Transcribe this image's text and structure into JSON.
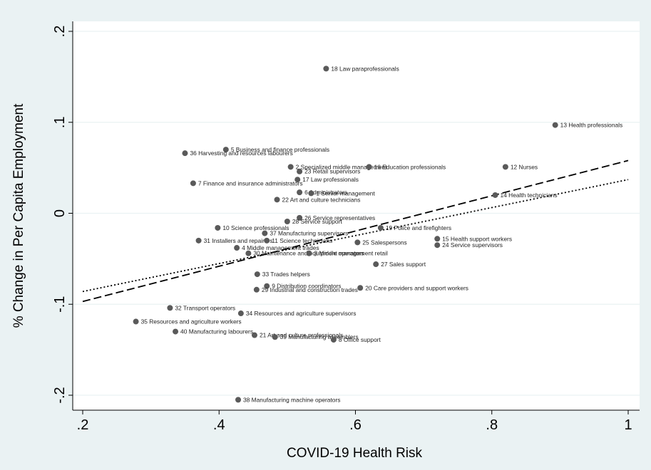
{
  "chart_data": {
    "type": "scatter",
    "title": "",
    "xlabel": "COVID-19 Health Risk",
    "ylabel": "% Change in Per Capita Employment",
    "xlim": [
      0.2,
      1.0
    ],
    "ylim": [
      -0.2,
      0.2
    ],
    "xticks": [
      ".2",
      ".4",
      ".6",
      ".8",
      "1"
    ],
    "yticks": [
      "-.2",
      "-.1",
      "0",
      ".1",
      ".2"
    ],
    "grid": true,
    "legend": "none",
    "colors": {
      "background": "#eaf2f3",
      "plot_area": "#ffffff",
      "marker": "#5a5a5a",
      "grid": "#eaf2f3"
    },
    "points": [
      {
        "label": "18 Law paraprofessionals",
        "x": 0.557,
        "y": 0.159
      },
      {
        "label": "13 Health professionals",
        "x": 0.893,
        "y": 0.097
      },
      {
        "label": "5 Business and finance professionals",
        "x": 0.41,
        "y": 0.07
      },
      {
        "label": "36 Harvesting and resources labourers",
        "x": 0.35,
        "y": 0.066
      },
      {
        "label": "2 Specialized middle management",
        "x": 0.505,
        "y": 0.051
      },
      {
        "label": "16 Education professionals",
        "x": 0.62,
        "y": 0.051
      },
      {
        "label": "12 Nurses",
        "x": 0.82,
        "y": 0.051
      },
      {
        "label": "23 Retail supervisors",
        "x": 0.518,
        "y": 0.046
      },
      {
        "label": "17 Law professionals",
        "x": 0.515,
        "y": 0.037
      },
      {
        "label": "7 Finance and insurance administrators",
        "x": 0.362,
        "y": 0.033
      },
      {
        "label": "6 Administrators",
        "x": 0.518,
        "y": 0.023
      },
      {
        "label": "1 Senior management",
        "x": 0.535,
        "y": 0.022
      },
      {
        "label": "14 Health technicians",
        "x": 0.805,
        "y": 0.02
      },
      {
        "label": "22 Art and culture technicians",
        "x": 0.485,
        "y": 0.015
      },
      {
        "label": "26 Service representatives",
        "x": 0.518,
        "y": -0.005
      },
      {
        "label": "28 Service support",
        "x": 0.5,
        "y": -0.009
      },
      {
        "label": "10 Science professionals",
        "x": 0.398,
        "y": -0.016
      },
      {
        "label": "19 Police and firefighters",
        "x": 0.637,
        "y": -0.016
      },
      {
        "label": "37 Manufacturing supervisors",
        "x": 0.467,
        "y": -0.022
      },
      {
        "label": "31 Installers and repairers",
        "x": 0.37,
        "y": -0.03
      },
      {
        "label": "11 Science technicians",
        "x": 0.47,
        "y": -0.03
      },
      {
        "label": "15 Health support workers",
        "x": 0.72,
        "y": -0.028
      },
      {
        "label": "25 Salespersons",
        "x": 0.603,
        "y": -0.032
      },
      {
        "label": "24 Service supervisors",
        "x": 0.72,
        "y": -0.035
      },
      {
        "label": "4 Middle management trades",
        "x": 0.426,
        "y": -0.038
      },
      {
        "label": "30 Maintenance and equipment operators",
        "x": 0.443,
        "y": -0.044
      },
      {
        "label": "3 Middle management retail",
        "x": 0.532,
        "y": -0.044
      },
      {
        "label": "27 Sales support",
        "x": 0.63,
        "y": -0.056
      },
      {
        "label": "33 Trades helpers",
        "x": 0.456,
        "y": -0.067
      },
      {
        "label": "9 Distribution coordinators",
        "x": 0.47,
        "y": -0.08
      },
      {
        "label": "20 Care providers and support workers",
        "x": 0.607,
        "y": -0.082
      },
      {
        "label": "29 Industrial and construction trades",
        "x": 0.455,
        "y": -0.084
      },
      {
        "label": "32 Transport operators",
        "x": 0.328,
        "y": -0.104
      },
      {
        "label": "34 Resources and agriculture supervisors",
        "x": 0.432,
        "y": -0.11
      },
      {
        "label": "35 Resources and agriculture workers",
        "x": 0.278,
        "y": -0.119
      },
      {
        "label": "40 Manufacturing labourers",
        "x": 0.336,
        "y": -0.13
      },
      {
        "label": "21 Art and culture professionals",
        "x": 0.452,
        "y": -0.134
      },
      {
        "label": "39 Manufacturing assemblers",
        "x": 0.482,
        "y": -0.136
      },
      {
        "label": "8 Office support",
        "x": 0.568,
        "y": -0.139
      },
      {
        "label": "38 Manufacturing machine operators",
        "x": 0.428,
        "y": -0.205
      }
    ],
    "fit_lines": [
      {
        "style": "dashed",
        "x": [
          0.2,
          1.0
        ],
        "y": [
          -0.097,
          0.058
        ]
      },
      {
        "style": "dotted",
        "x": [
          0.2,
          1.0
        ],
        "y": [
          -0.086,
          0.037
        ]
      }
    ]
  }
}
